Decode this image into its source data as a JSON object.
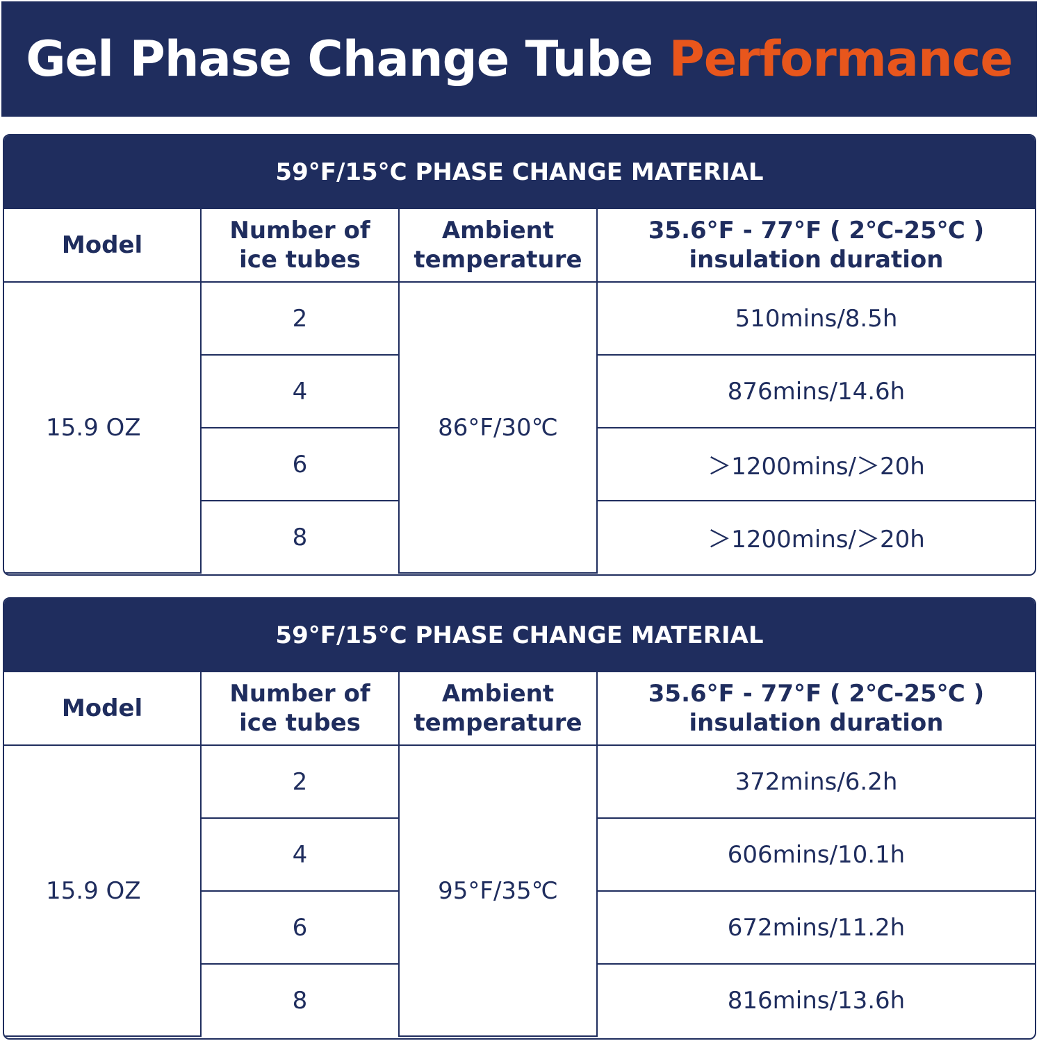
{
  "banner": {
    "title_main": "Gel Phase Change Tube",
    "title_accent": "Performance"
  },
  "tables": [
    {
      "heading": "59°F/15°C  PHASE CHANGE MATERIAL",
      "columns": {
        "model": "Model",
        "count_line1": "Number of",
        "count_line2": "ice tubes",
        "ambient_line1": "Ambient",
        "ambient_line2": "temperature",
        "duration_line1": "35.6°F - 77°F  ( 2℃-25℃ )",
        "duration_line2": "insulation duration"
      },
      "model": "15.9 OZ",
      "ambient": "86°F/30℃",
      "rows": [
        {
          "tubes": "2",
          "duration": "510mins/8.5h"
        },
        {
          "tubes": "4",
          "duration": "876mins/14.6h"
        },
        {
          "tubes": "6",
          "duration": "＞1200mins/＞20h"
        },
        {
          "tubes": "8",
          "duration": "＞1200mins/＞20h"
        }
      ]
    },
    {
      "heading": "59°F/15°C  PHASE CHANGE MATERIAL",
      "columns": {
        "model": "Model",
        "count_line1": "Number of",
        "count_line2": "ice tubes",
        "ambient_line1": "Ambient",
        "ambient_line2": "temperature",
        "duration_line1": "35.6°F - 77°F  ( 2℃-25℃ )",
        "duration_line2": "insulation duration"
      },
      "model": "15.9 OZ",
      "ambient": "95°F/35℃",
      "rows": [
        {
          "tubes": "2",
          "duration": "372mins/6.2h"
        },
        {
          "tubes": "4",
          "duration": "606mins/10.1h"
        },
        {
          "tubes": "6",
          "duration": "672mins/11.2h"
        },
        {
          "tubes": "8",
          "duration": "816mins/13.6h"
        }
      ]
    }
  ],
  "colors": {
    "navy": "#1f2d5e",
    "accent": "#e8561c"
  }
}
